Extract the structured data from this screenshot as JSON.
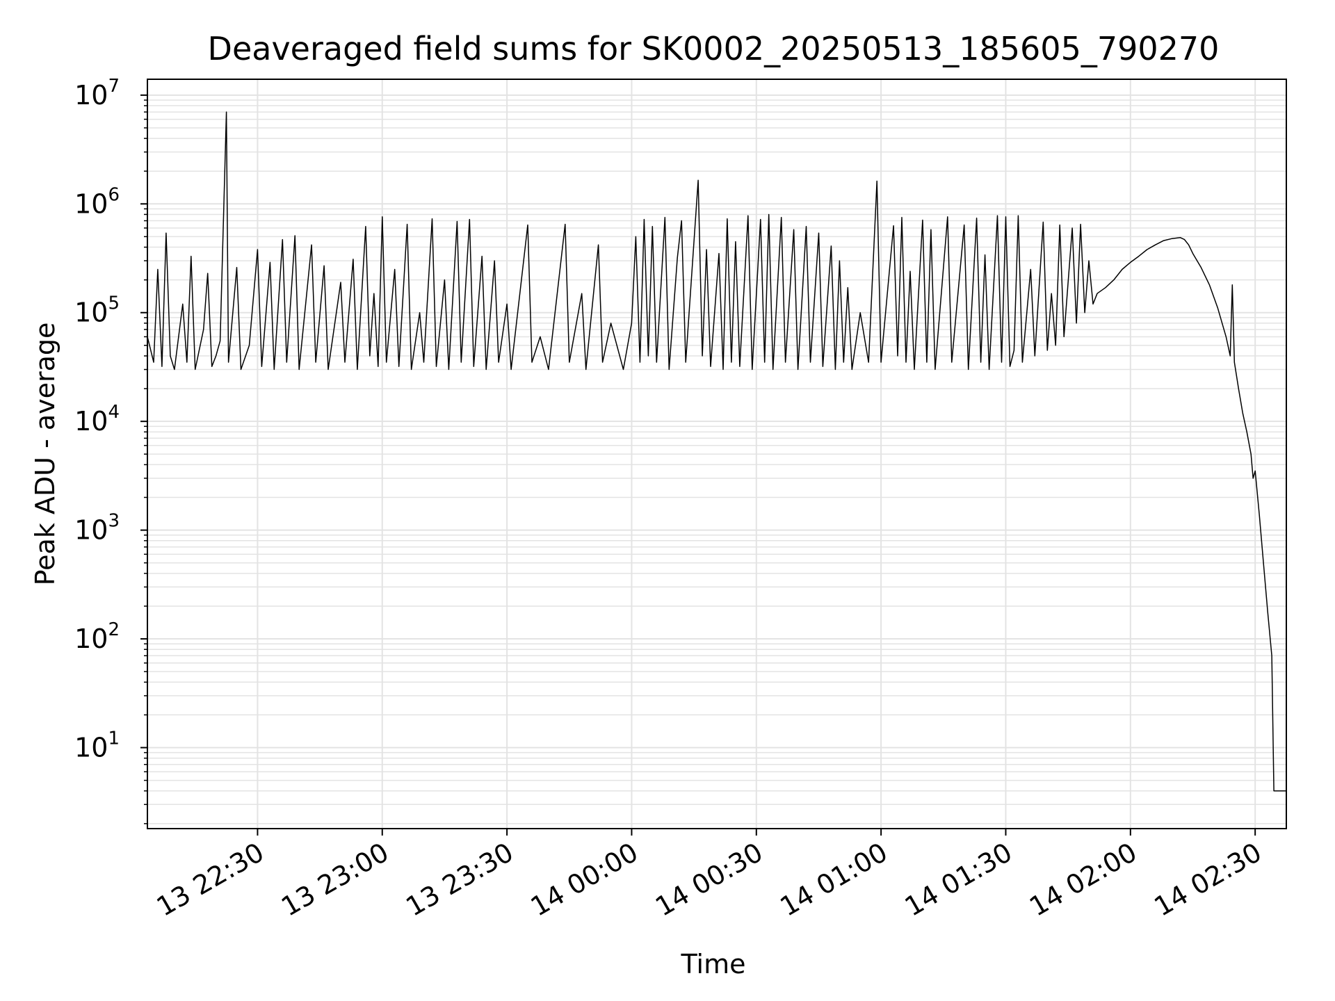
{
  "chart_data": {
    "type": "line",
    "title": "Deaveraged field sums for SK0002_20250513_185605_790270",
    "xlabel": "Time",
    "ylabel": "Peak ADU - average",
    "yscale": "log",
    "ylim": [
      1.8,
      14000000
    ],
    "xlim": [
      "13 22:03:30",
      "14 02:37:30"
    ],
    "grid": true,
    "line_color": "#000000",
    "grid_color": "#e3e3e3",
    "x_ticks": [
      {
        "label": "13 22:30",
        "time": "13 22:30"
      },
      {
        "label": "13 23:00",
        "time": "13 23:00"
      },
      {
        "label": "13 23:30",
        "time": "13 23:30"
      },
      {
        "label": "14 00:00",
        "time": "14 00:00"
      },
      {
        "label": "14 00:30",
        "time": "14 00:30"
      },
      {
        "label": "14 01:00",
        "time": "14 01:00"
      },
      {
        "label": "14 01:30",
        "time": "14 01:30"
      },
      {
        "label": "14 02:00",
        "time": "14 02:00"
      },
      {
        "label": "14 02:30",
        "time": "14 02:30"
      }
    ],
    "y_ticks": [
      {
        "base": "10",
        "exp": "1",
        "value": 10
      },
      {
        "base": "10",
        "exp": "2",
        "value": 100
      },
      {
        "base": "10",
        "exp": "3",
        "value": 1000
      },
      {
        "base": "10",
        "exp": "4",
        "value": 10000
      },
      {
        "base": "10",
        "exp": "5",
        "value": 100000
      },
      {
        "base": "10",
        "exp": "6",
        "value": 1000000
      },
      {
        "base": "10",
        "exp": "7",
        "value": 10000000
      }
    ],
    "series": [
      {
        "points": [
          [
            "13 22:03:30",
            60000
          ],
          [
            "13 22:05",
            35000
          ],
          [
            "13 22:06",
            250000
          ],
          [
            "13 22:07",
            32000
          ],
          [
            "13 22:08",
            540000
          ],
          [
            "13 22:09",
            40000
          ],
          [
            "13 22:10",
            30000
          ],
          [
            "13 22:12",
            120000
          ],
          [
            "13 22:13",
            35000
          ],
          [
            "13 22:14",
            330000
          ],
          [
            "13 22:15",
            30000
          ],
          [
            "13 22:17",
            70000
          ],
          [
            "13 22:18",
            230000
          ],
          [
            "13 22:19",
            32000
          ],
          [
            "13 22:20",
            40000
          ],
          [
            "13 22:21",
            55000
          ],
          [
            "13 22:22:30",
            7000000
          ],
          [
            "13 22:23",
            35000
          ],
          [
            "13 22:25",
            260000
          ],
          [
            "13 22:26",
            30000
          ],
          [
            "13 22:28",
            50000
          ],
          [
            "13 22:30",
            380000
          ],
          [
            "13 22:31",
            32000
          ],
          [
            "13 22:33",
            290000
          ],
          [
            "13 22:34",
            30000
          ],
          [
            "13 22:36",
            470000
          ],
          [
            "13 22:37",
            35000
          ],
          [
            "13 22:39",
            510000
          ],
          [
            "13 22:40",
            30000
          ],
          [
            "13 22:43",
            420000
          ],
          [
            "13 22:44",
            35000
          ],
          [
            "13 22:46",
            270000
          ],
          [
            "13 22:47",
            30000
          ],
          [
            "13 22:50",
            190000
          ],
          [
            "13 22:51",
            35000
          ],
          [
            "13 22:53",
            310000
          ],
          [
            "13 22:54",
            30000
          ],
          [
            "13 22:56",
            620000
          ],
          [
            "13 22:57",
            40000
          ],
          [
            "13 22:58",
            150000
          ],
          [
            "13 22:59",
            32000
          ],
          [
            "13 23:00",
            760000
          ],
          [
            "13 23:01",
            35000
          ],
          [
            "13 23:03",
            250000
          ],
          [
            "13 23:04",
            32000
          ],
          [
            "13 23:06",
            650000
          ],
          [
            "13 23:07",
            30000
          ],
          [
            "13 23:09",
            100000
          ],
          [
            "13 23:10",
            35000
          ],
          [
            "13 23:12",
            730000
          ],
          [
            "13 23:13",
            32000
          ],
          [
            "13 23:15",
            200000
          ],
          [
            "13 23:16",
            30000
          ],
          [
            "13 23:18",
            690000
          ],
          [
            "13 23:19",
            35000
          ],
          [
            "13 23:21",
            720000
          ],
          [
            "13 23:22",
            32000
          ],
          [
            "13 23:24",
            330000
          ],
          [
            "13 23:25",
            30000
          ],
          [
            "13 23:27",
            300000
          ],
          [
            "13 23:28",
            35000
          ],
          [
            "13 23:30",
            120000
          ],
          [
            "13 23:31",
            30000
          ],
          [
            "13 23:35",
            640000
          ],
          [
            "13 23:36",
            35000
          ],
          [
            "13 23:38",
            60000
          ],
          [
            "13 23:40",
            30000
          ],
          [
            "13 23:44",
            650000
          ],
          [
            "13 23:45",
            35000
          ],
          [
            "13 23:48",
            150000
          ],
          [
            "13 23:49",
            30000
          ],
          [
            "13 23:52",
            420000
          ],
          [
            "13 23:53",
            35000
          ],
          [
            "13 23:55",
            80000
          ],
          [
            "13 23:58",
            30000
          ],
          [
            "14 00:00",
            80000
          ],
          [
            "14 00:01",
            500000
          ],
          [
            "14 00:02",
            35000
          ],
          [
            "14 00:03",
            720000
          ],
          [
            "14 00:04",
            40000
          ],
          [
            "14 00:05",
            620000
          ],
          [
            "14 00:06",
            35000
          ],
          [
            "14 00:08",
            750000
          ],
          [
            "14 00:09",
            30000
          ],
          [
            "14 00:11",
            320000
          ],
          [
            "14 00:12",
            700000
          ],
          [
            "14 00:13",
            35000
          ],
          [
            "14 00:16",
            1650000
          ],
          [
            "14 00:17",
            40000
          ],
          [
            "14 00:18",
            380000
          ],
          [
            "14 00:19",
            32000
          ],
          [
            "14 00:21",
            350000
          ],
          [
            "14 00:22",
            30000
          ],
          [
            "14 00:23",
            730000
          ],
          [
            "14 00:24",
            35000
          ],
          [
            "14 00:25",
            450000
          ],
          [
            "14 00:26",
            32000
          ],
          [
            "14 00:28",
            780000
          ],
          [
            "14 00:29",
            30000
          ],
          [
            "14 00:31",
            720000
          ],
          [
            "14 00:32",
            35000
          ],
          [
            "14 00:33",
            800000
          ],
          [
            "14 00:34",
            30000
          ],
          [
            "14 00:36",
            750000
          ],
          [
            "14 00:37",
            35000
          ],
          [
            "14 00:39",
            580000
          ],
          [
            "14 00:40",
            30000
          ],
          [
            "14 00:42",
            620000
          ],
          [
            "14 00:43",
            35000
          ],
          [
            "14 00:45",
            540000
          ],
          [
            "14 00:46",
            32000
          ],
          [
            "14 00:48",
            410000
          ],
          [
            "14 00:49",
            30000
          ],
          [
            "14 00:50",
            300000
          ],
          [
            "14 00:51",
            35000
          ],
          [
            "14 00:52",
            170000
          ],
          [
            "14 00:53",
            30000
          ],
          [
            "14 00:55",
            100000
          ],
          [
            "14 00:57",
            35000
          ],
          [
            "14 00:59",
            1620000
          ],
          [
            "14 01:00",
            35000
          ],
          [
            "14 01:03",
            630000
          ],
          [
            "14 01:04",
            40000
          ],
          [
            "14 01:05",
            750000
          ],
          [
            "14 01:06",
            35000
          ],
          [
            "14 01:07",
            240000
          ],
          [
            "14 01:08",
            30000
          ],
          [
            "14 01:10",
            710000
          ],
          [
            "14 01:11",
            35000
          ],
          [
            "14 01:12",
            580000
          ],
          [
            "14 01:13",
            30000
          ],
          [
            "14 01:16",
            760000
          ],
          [
            "14 01:17",
            35000
          ],
          [
            "14 01:20",
            640000
          ],
          [
            "14 01:21",
            30000
          ],
          [
            "14 01:23",
            740000
          ],
          [
            "14 01:24",
            35000
          ],
          [
            "14 01:25",
            340000
          ],
          [
            "14 01:26",
            30000
          ],
          [
            "14 01:28",
            780000
          ],
          [
            "14 01:29",
            35000
          ],
          [
            "14 01:30",
            760000
          ],
          [
            "14 01:31",
            32000
          ],
          [
            "14 01:32",
            45000
          ],
          [
            "14 01:33",
            780000
          ],
          [
            "14 01:34",
            35000
          ],
          [
            "14 01:36",
            250000
          ],
          [
            "14 01:37",
            40000
          ],
          [
            "14 01:39",
            680000
          ],
          [
            "14 01:40",
            45000
          ],
          [
            "14 01:41",
            150000
          ],
          [
            "14 01:42",
            50000
          ],
          [
            "14 01:43",
            640000
          ],
          [
            "14 01:44",
            60000
          ],
          [
            "14 01:46",
            600000
          ],
          [
            "14 01:47",
            80000
          ],
          [
            "14 01:48",
            650000
          ],
          [
            "14 01:49",
            100000
          ],
          [
            "14 01:50",
            300000
          ],
          [
            "14 01:51",
            120000
          ],
          [
            "14 01:52",
            150000
          ],
          [
            "14 01:54",
            170000
          ],
          [
            "14 01:56",
            200000
          ],
          [
            "14 01:58",
            250000
          ],
          [
            "14 02:00",
            290000
          ],
          [
            "14 02:02",
            330000
          ],
          [
            "14 02:04",
            380000
          ],
          [
            "14 02:06",
            420000
          ],
          [
            "14 02:08",
            460000
          ],
          [
            "14 02:10",
            480000
          ],
          [
            "14 02:12",
            490000
          ],
          [
            "14 02:13",
            470000
          ],
          [
            "14 02:14",
            420000
          ],
          [
            "14 02:15",
            350000
          ],
          [
            "14 02:17",
            260000
          ],
          [
            "14 02:19",
            180000
          ],
          [
            "14 02:21",
            110000
          ],
          [
            "14 02:23",
            60000
          ],
          [
            "14 02:24",
            40000
          ],
          [
            "14 02:24:30",
            180000
          ],
          [
            "14 02:25",
            35000
          ],
          [
            "14 02:26",
            20000
          ],
          [
            "14 02:27",
            12000
          ],
          [
            "14 02:28",
            8000
          ],
          [
            "14 02:29",
            5000
          ],
          [
            "14 02:29:30",
            3000
          ],
          [
            "14 02:30",
            3500
          ],
          [
            "14 02:31",
            1400
          ],
          [
            "14 02:32",
            500
          ],
          [
            "14 02:33",
            180
          ],
          [
            "14 02:34",
            70
          ],
          [
            "14 02:34:30",
            4
          ],
          [
            "14 02:36",
            4
          ],
          [
            "14 02:37:30",
            4
          ]
        ]
      }
    ]
  }
}
